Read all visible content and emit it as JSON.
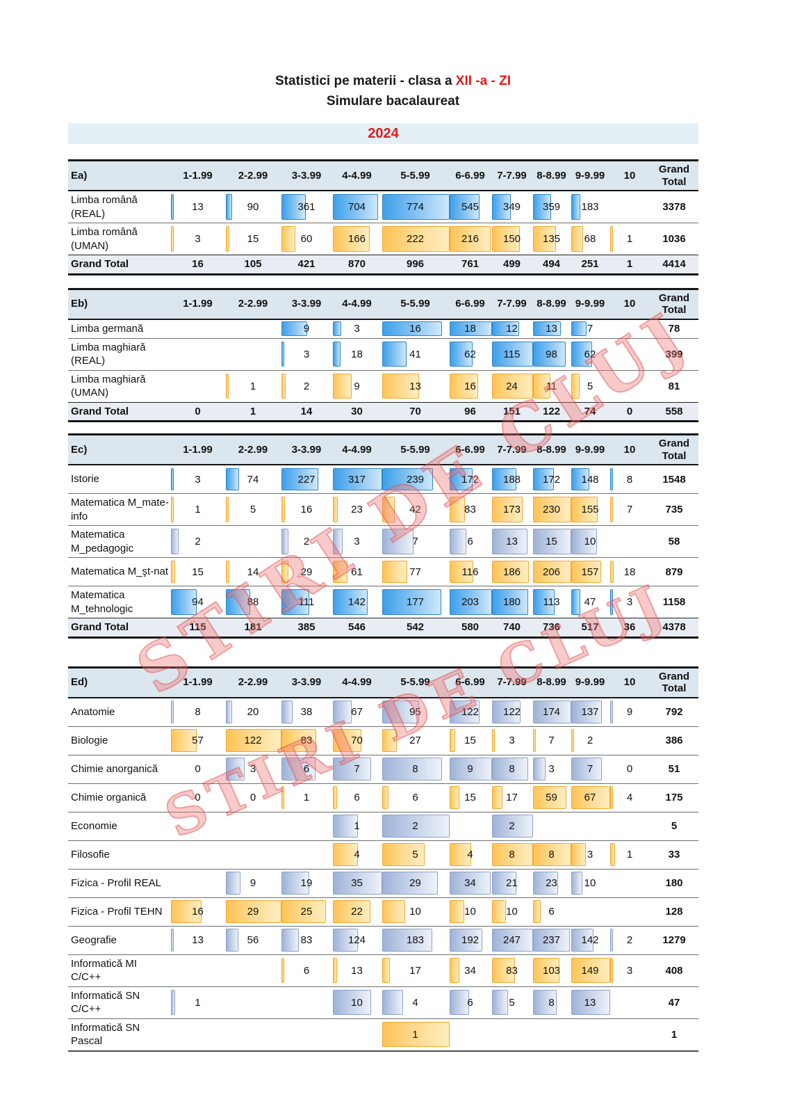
{
  "page": {
    "title_prefix": "Statistici pe materii - clasa a ",
    "title_highlight": "XII -a - ZI",
    "subtitle": "Simulare bacalaureat",
    "year": "2024",
    "watermark_text": "STIRI DE CLUJ"
  },
  "columns": [
    "1-1.99",
    "2-2.99",
    "3-3.99",
    "4-4.99",
    "5-5.99",
    "6-6.99",
    "7-7.99",
    "8-8.99",
    "9-9.99",
    "10"
  ],
  "grand_total_header": "Grand Total",
  "colors": {
    "accent_red": "#e01b1b",
    "year_band_bg": "#e4f0f6",
    "header_bg": "#dce6ee",
    "total_row_bg": "#e8edf3",
    "bar_blue_border": "#2e86c8",
    "bar_blue_fill": "#3da0ea",
    "bar_steel_border": "#8ba1c9",
    "bar_steel_fill": "#9fb3d8",
    "bar_orange_border": "#f0a832",
    "bar_orange_fill": "#ffc355",
    "watermark_pink": "#e85a5a"
  },
  "tables": [
    {
      "name": "Ea)",
      "rows": [
        {
          "label": "Limba română (REAL)",
          "bar": "blue",
          "values": [
            13,
            90,
            361,
            704,
            774,
            545,
            349,
            359,
            183,
            null
          ],
          "total": 3378
        },
        {
          "label": "Limba română\n(UMAN)",
          "bar": "orange",
          "values": [
            3,
            15,
            60,
            166,
            222,
            216,
            150,
            135,
            68,
            1
          ],
          "total": 1036
        }
      ],
      "grand_total": {
        "label": "Grand Total",
        "values": [
          16,
          105,
          421,
          870,
          996,
          761,
          499,
          494,
          251,
          1
        ],
        "total": 4414
      }
    },
    {
      "name": "Eb)",
      "rows": [
        {
          "label": "Limba germană",
          "bar": "blue",
          "values": [
            null,
            null,
            9,
            3,
            16,
            18,
            12,
            13,
            7,
            null
          ],
          "total": 78
        },
        {
          "label": "Limba maghiară\n(REAL)",
          "bar": "blue",
          "values": [
            null,
            null,
            3,
            18,
            41,
            62,
            115,
            98,
            62,
            null
          ],
          "total": 399
        },
        {
          "label": "Limba maghiară\n(UMAN)",
          "bar": "orange",
          "values": [
            null,
            1,
            2,
            9,
            13,
            16,
            24,
            11,
            5,
            null
          ],
          "total": 81
        }
      ],
      "grand_total": {
        "label": "Grand Total",
        "values": [
          0,
          1,
          14,
          30,
          70,
          96,
          151,
          122,
          74,
          0
        ],
        "total": 558
      }
    },
    {
      "name": "Ec)",
      "rows": [
        {
          "label": "Istorie",
          "bar": "blue",
          "values": [
            3,
            74,
            227,
            317,
            239,
            172,
            188,
            172,
            148,
            8
          ],
          "total": 1548
        },
        {
          "label": "Matematica M_mate-\ninfo",
          "bar": "orange",
          "values": [
            1,
            5,
            16,
            23,
            42,
            83,
            173,
            230,
            155,
            7
          ],
          "total": 735
        },
        {
          "label": "Matematica\nM_pedagogic",
          "bar": "steel",
          "values": [
            2,
            null,
            2,
            3,
            7,
            6,
            13,
            15,
            10,
            null
          ],
          "total": 58
        },
        {
          "label": "Matematica M_şt-nat",
          "bar": "orange",
          "values": [
            15,
            14,
            29,
            61,
            77,
            116,
            186,
            206,
            157,
            18
          ],
          "total": 879
        },
        {
          "label": "Matematica\nM_tehnologic",
          "bar": "blue",
          "values": [
            94,
            88,
            111,
            142,
            177,
            203,
            180,
            113,
            47,
            3
          ],
          "total": 1158
        }
      ],
      "grand_total": {
        "label": "Grand Total",
        "values": [
          115,
          181,
          385,
          546,
          542,
          580,
          740,
          736,
          517,
          36
        ],
        "total": 4378
      }
    },
    {
      "name": "Ed)",
      "rows": [
        {
          "label": "Anatomie",
          "bar": "steel",
          "values": [
            8,
            20,
            38,
            67,
            95,
            122,
            122,
            174,
            137,
            9
          ],
          "total": 792
        },
        {
          "label": "Biologie",
          "bar": "orange",
          "values": [
            57,
            122,
            83,
            70,
            27,
            15,
            3,
            7,
            2,
            null
          ],
          "total": 386
        },
        {
          "label": "Chimie anorganică",
          "bar": "steel",
          "values": [
            0,
            3,
            6,
            7,
            8,
            9,
            8,
            3,
            7,
            0
          ],
          "total": 51
        },
        {
          "label": "Chimie organică",
          "bar": "orange",
          "values": [
            0,
            0,
            1,
            6,
            6,
            15,
            17,
            59,
            67,
            4
          ],
          "total": 175
        },
        {
          "label": "Economie",
          "bar": "steel",
          "values": [
            null,
            null,
            null,
            1,
            2,
            null,
            2,
            null,
            null,
            null
          ],
          "total": 5
        },
        {
          "label": "Filosofie",
          "bar": "orange",
          "values": [
            null,
            null,
            null,
            4,
            5,
            4,
            8,
            8,
            3,
            1
          ],
          "total": 33
        },
        {
          "label": "Fizica - Profil REAL",
          "bar": "steel",
          "values": [
            null,
            9,
            19,
            35,
            29,
            34,
            21,
            23,
            10,
            null
          ],
          "total": 180
        },
        {
          "label": "Fizica - Profil TEHN",
          "bar": "orange",
          "values": [
            16,
            29,
            25,
            22,
            10,
            10,
            10,
            6,
            null,
            null
          ],
          "total": 128
        },
        {
          "label": "Geografie",
          "bar": "steel",
          "values": [
            13,
            56,
            83,
            124,
            183,
            192,
            247,
            237,
            142,
            2
          ],
          "total": 1279
        },
        {
          "label": "Informatică MI C/C++",
          "bar": "orange",
          "values": [
            null,
            null,
            6,
            13,
            17,
            34,
            83,
            103,
            149,
            3
          ],
          "total": 408
        },
        {
          "label": "Informatică SN C/C++",
          "bar": "steel",
          "values": [
            1,
            null,
            null,
            10,
            4,
            6,
            5,
            8,
            13,
            null
          ],
          "total": 47
        },
        {
          "label": "Informatică SN Pascal",
          "bar": "orange",
          "values": [
            null,
            null,
            null,
            null,
            1,
            null,
            null,
            null,
            null,
            null
          ],
          "total": 1
        }
      ],
      "grand_total": null
    }
  ]
}
